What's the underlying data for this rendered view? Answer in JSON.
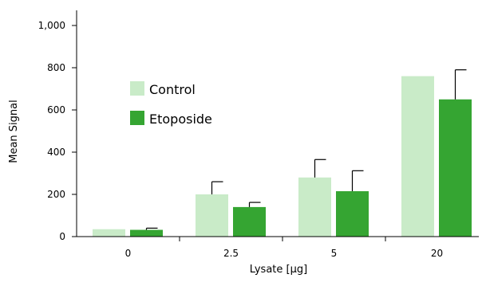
{
  "colors": {
    "control": "#c9ebc8",
    "etoposide": "#35a532",
    "axis": "#000000",
    "error_bar": "#000000"
  },
  "chart_data": {
    "type": "bar",
    "xlabel": "Lysate  [µg]",
    "ylabel": "Mean Signal",
    "categories": [
      "0",
      "2.5",
      "5",
      "20"
    ],
    "ylim": [
      0,
      1000
    ],
    "yticks": [
      0,
      200,
      400,
      600,
      800,
      1000
    ],
    "ytick_labels": [
      "0",
      "200",
      "400",
      "600",
      "800",
      "1,000"
    ],
    "grid": false,
    "legend_position": "upper-left",
    "series": [
      {
        "name": "Control",
        "values": [
          35,
          200,
          280,
          760
        ],
        "error_upper": [
          35,
          260,
          365,
          760
        ]
      },
      {
        "name": "Etoposide",
        "values": [
          32,
          140,
          215,
          650
        ],
        "error_upper": [
          40,
          162,
          312,
          790
        ]
      }
    ]
  }
}
